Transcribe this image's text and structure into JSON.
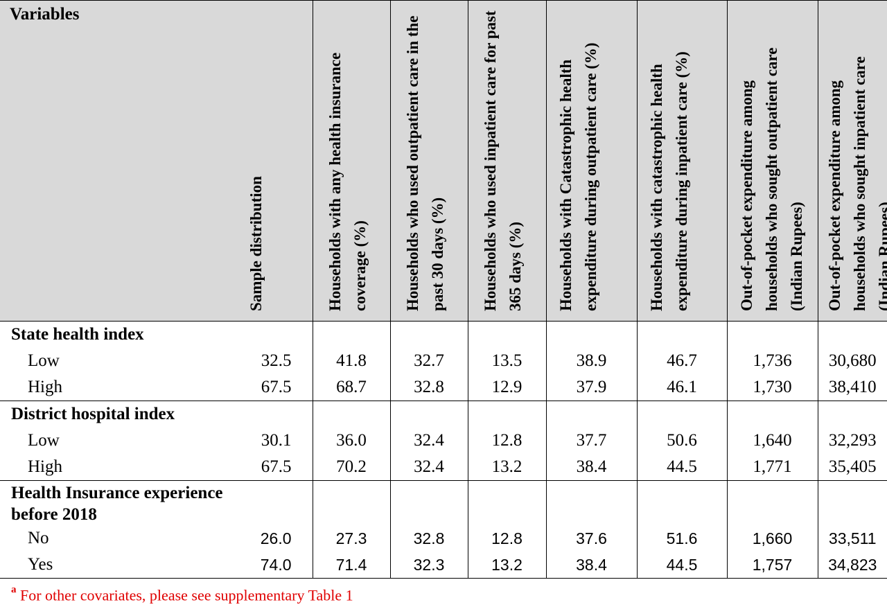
{
  "header": {
    "variables": "Variables",
    "columns": [
      "Sample distribution",
      "Households with any health insurance coverage (%)",
      "Households who used outpatient care in the past 30 days (%)",
      "Households  who used inpatient care for past 365 days (%)",
      "Households with Catastrophic health expenditure during outpatient care  (%)",
      "Households with catastrophic health expenditure during inpatient care (%)",
      "Out-of-pocket expenditure among households who sought outpatient care (Indian Rupees)",
      "Out-of-pocket expenditure among households who sought inpatient care (Indian Rupees)"
    ]
  },
  "sections": [
    {
      "title": "State health index",
      "rows": [
        {
          "label": "Low",
          "values": [
            "32.5",
            "41.8",
            "32.7",
            "13.5",
            "38.9",
            "46.7",
            "1,736",
            "30,680"
          ]
        },
        {
          "label": "High",
          "values": [
            "67.5",
            "68.7",
            "32.8",
            "12.9",
            "37.9",
            "46.1",
            "1,730",
            "38,410"
          ]
        }
      ]
    },
    {
      "title": "District hospital index",
      "rows": [
        {
          "label": "Low",
          "values": [
            "30.1",
            "36.0",
            "32.4",
            "12.8",
            "37.7",
            "50.6",
            "1,640",
            "32,293"
          ]
        },
        {
          "label": "High",
          "values": [
            "67.5",
            "70.2",
            "32.4",
            "13.2",
            "38.4",
            "44.5",
            "1,771",
            "35,405"
          ]
        }
      ]
    },
    {
      "title_line1": "Health Insurance experience",
      "title_line2": "before 2018",
      "rows": [
        {
          "label": "No",
          "values": [
            "26.0",
            "27.3",
            "32.8",
            "12.8",
            "37.6",
            "51.6",
            "1,660",
            "33,511"
          ]
        },
        {
          "label": "Yes",
          "values": [
            "74.0",
            "71.4",
            "32.3",
            "13.2",
            "38.4",
            "44.5",
            "1,757",
            "34,823"
          ]
        }
      ]
    }
  ],
  "footnote": {
    "marker": "a",
    "text": "For other covariates, please see supplementary Table 1"
  }
}
